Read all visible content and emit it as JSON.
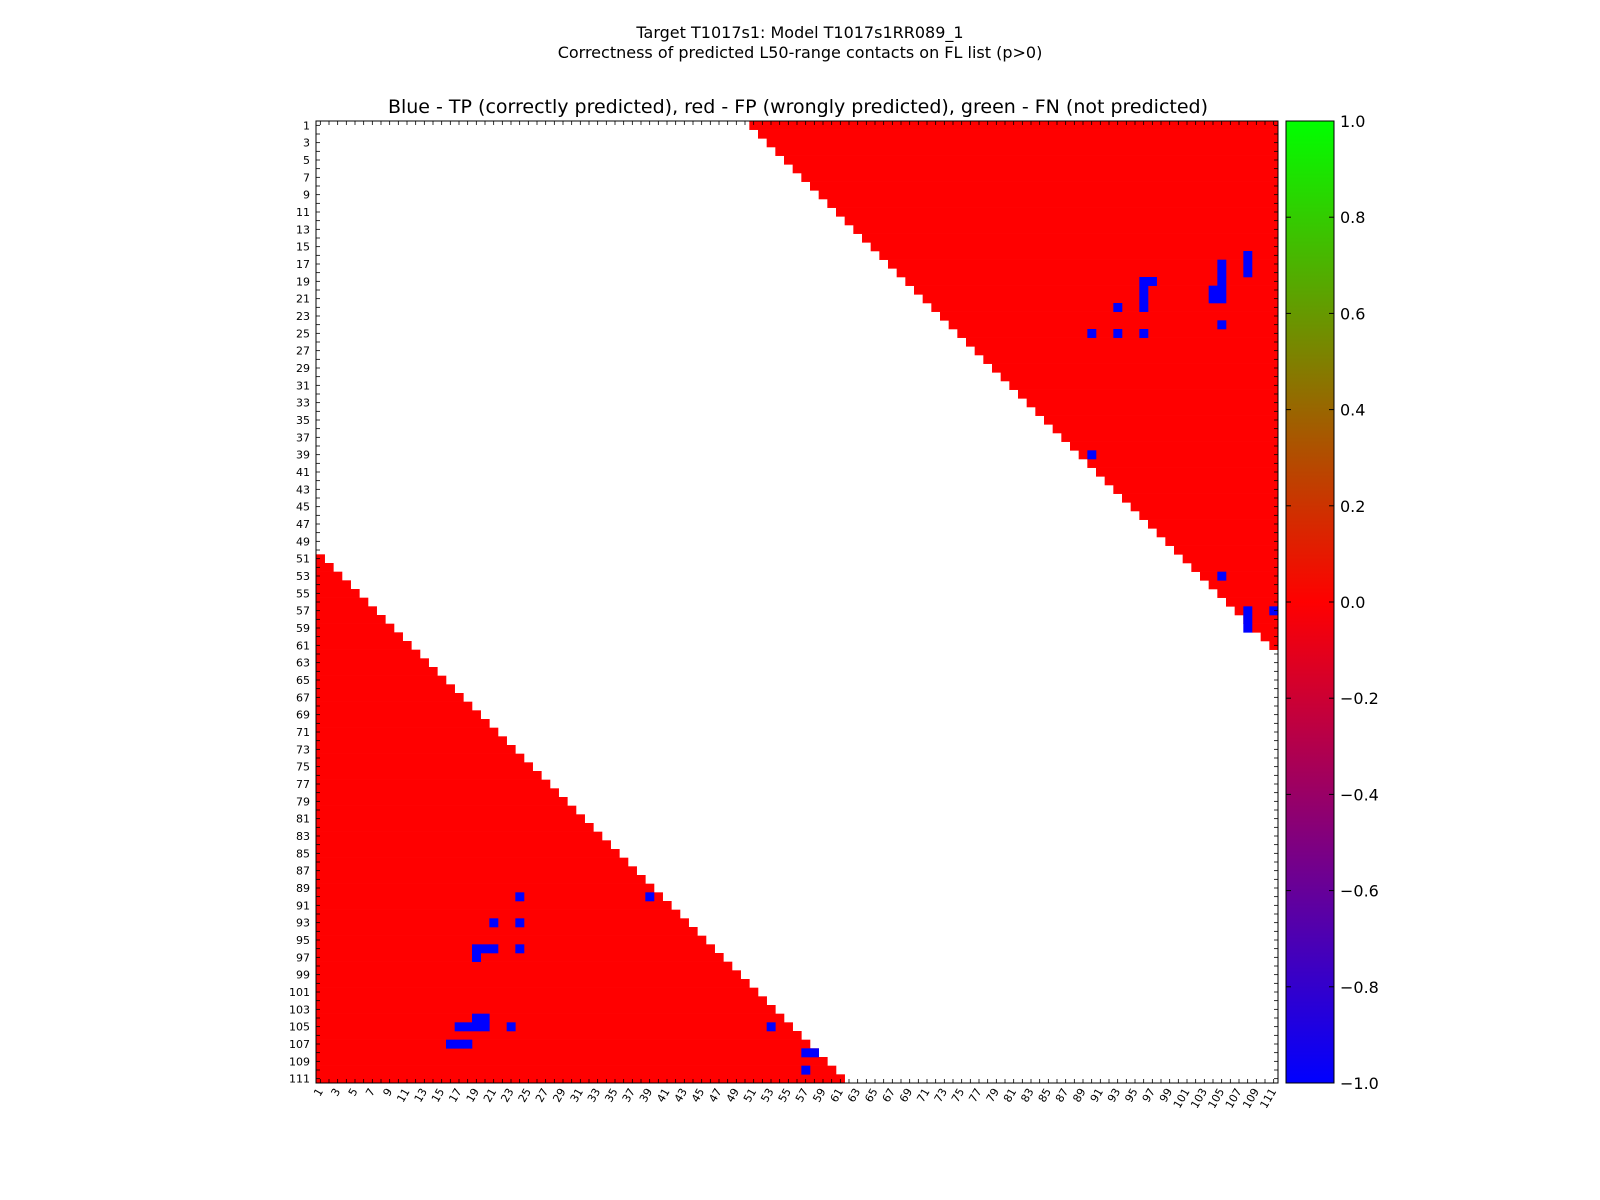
{
  "figure": {
    "title_line1": "Target T1017s1: Model T1017s1RR089_1",
    "title_line2": "Correctness of predicted L50-range contacts on FL list (p>0)",
    "axes_title": "Blue - TP (correctly predicted), red - FP (wrongly predicted), green - FN (not predicted)"
  },
  "colors": {
    "tp": "#0000ff",
    "fp": "#ff0000",
    "fn": "#00ff00",
    "background": "#ffffff"
  },
  "chart_data": {
    "type": "heatmap",
    "n": 111,
    "x_ticks": [
      "1",
      "3",
      "5",
      "7",
      "9",
      "11",
      "13",
      "15",
      "17",
      "19",
      "21",
      "23",
      "25",
      "27",
      "29",
      "31",
      "33",
      "35",
      "37",
      "39",
      "41",
      "43",
      "45",
      "47",
      "49",
      "51",
      "53",
      "55",
      "57",
      "59",
      "61",
      "63",
      "65",
      "67",
      "69",
      "71",
      "73",
      "75",
      "77",
      "79",
      "81",
      "83",
      "85",
      "87",
      "89",
      "91",
      "93",
      "95",
      "97",
      "99",
      "101",
      "103",
      "105",
      "107",
      "109",
      "111"
    ],
    "y_ticks": [
      "1",
      "3",
      "5",
      "7",
      "9",
      "11",
      "13",
      "15",
      "17",
      "19",
      "21",
      "23",
      "25",
      "27",
      "29",
      "31",
      "33",
      "35",
      "37",
      "39",
      "41",
      "43",
      "45",
      "47",
      "49",
      "51",
      "53",
      "55",
      "57",
      "59",
      "61",
      "63",
      "65",
      "67",
      "69",
      "71",
      "73",
      "75",
      "77",
      "79",
      "81",
      "83",
      "85",
      "87",
      "89",
      "91",
      "93",
      "95",
      "97",
      "99",
      "101",
      "103",
      "105",
      "107",
      "109",
      "111"
    ],
    "sequence_separation_min": 50,
    "fill_value": 0.0,
    "tp_cells_upper": [
      [
        17,
        105
      ],
      [
        18,
        105
      ],
      [
        19,
        105
      ],
      [
        20,
        104
      ],
      [
        20,
        105
      ],
      [
        21,
        104
      ],
      [
        21,
        105
      ],
      [
        16,
        108
      ],
      [
        17,
        108
      ],
      [
        18,
        108
      ],
      [
        19,
        96
      ],
      [
        19,
        97
      ],
      [
        20,
        96
      ],
      [
        21,
        96
      ],
      [
        22,
        96
      ],
      [
        22,
        93
      ],
      [
        24,
        105
      ],
      [
        25,
        90
      ],
      [
        25,
        93
      ],
      [
        25,
        96
      ],
      [
        39,
        90
      ],
      [
        53,
        105
      ],
      [
        57,
        108
      ],
      [
        58,
        108
      ],
      [
        59,
        108
      ],
      [
        57,
        111
      ]
    ],
    "tp_cells_lower": [
      [
        90,
        24
      ],
      [
        90,
        39
      ],
      [
        93,
        21
      ],
      [
        93,
        24
      ],
      [
        96,
        19
      ],
      [
        96,
        20
      ],
      [
        96,
        21
      ],
      [
        96,
        24
      ],
      [
        97,
        19
      ],
      [
        104,
        19
      ],
      [
        104,
        20
      ],
      [
        105,
        17
      ],
      [
        105,
        18
      ],
      [
        105,
        19
      ],
      [
        105,
        20
      ],
      [
        105,
        23
      ],
      [
        105,
        53
      ],
      [
        107,
        16
      ],
      [
        107,
        17
      ],
      [
        107,
        18
      ],
      [
        108,
        57
      ],
      [
        108,
        58
      ],
      [
        110,
        57
      ]
    ],
    "colorbar": {
      "range": [
        -1.0,
        1.0
      ],
      "ticks": [
        "1.0",
        "0.8",
        "0.6",
        "0.4",
        "0.2",
        "0.0",
        "−0.2",
        "−0.4",
        "−0.6",
        "−0.8",
        "−1.0"
      ],
      "colormap": [
        "#0000ff",
        "#ff0000",
        "#00ff00"
      ]
    }
  }
}
